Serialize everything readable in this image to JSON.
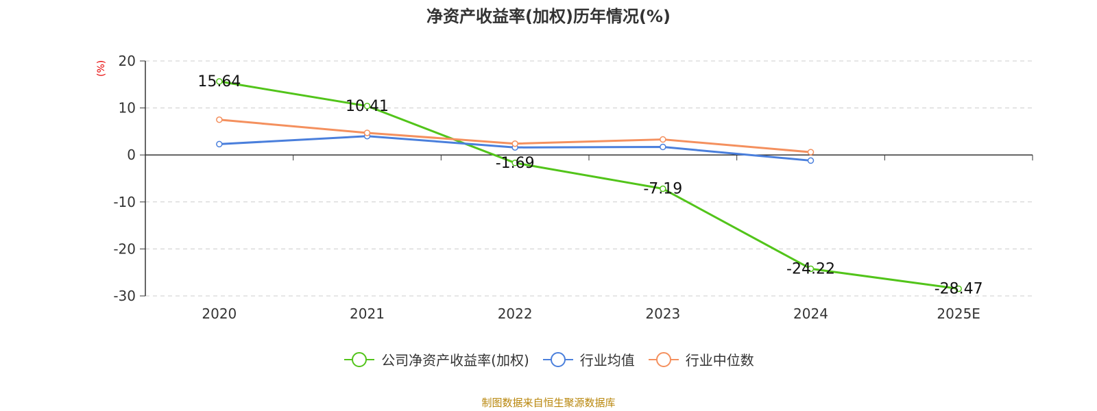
{
  "title": "净资产收益率(加权)历年情况(%)",
  "unit_label": "(%)",
  "source": "制图数据来自恒生聚源数据库",
  "chart_data": {
    "type": "line",
    "categories": [
      "2020",
      "2021",
      "2022",
      "2023",
      "2024",
      "2025E"
    ],
    "ylim": [
      -30,
      20
    ],
    "yticks": [
      20,
      10,
      0,
      -10,
      -20,
      -30
    ],
    "grid": true,
    "legend_position": "bottom",
    "series": [
      {
        "name": "公司净资产收益率(加权)",
        "color": "#52c41a",
        "values": [
          15.64,
          10.41,
          -1.69,
          -7.19,
          -24.22,
          -28.47
        ],
        "labels": [
          "15.64",
          "10.41",
          "-1.69",
          "-7.19",
          "-24.22",
          "-28.47"
        ]
      },
      {
        "name": "行业均值",
        "color": "#4a7fdc",
        "values": [
          2.3,
          4.0,
          1.6,
          1.7,
          -1.2,
          null
        ]
      },
      {
        "name": "行业中位数",
        "color": "#f4905e",
        "values": [
          7.5,
          4.7,
          2.4,
          3.3,
          0.6,
          null
        ]
      }
    ]
  }
}
